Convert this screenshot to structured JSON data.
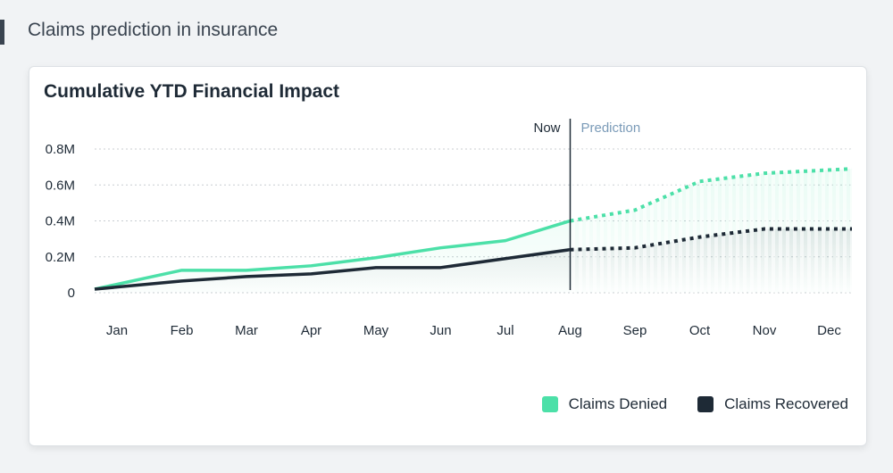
{
  "page_title": "Claims prediction in insurance",
  "chart_data": {
    "type": "line",
    "title": "Cumulative YTD Financial Impact",
    "categories": [
      "Jan",
      "Feb",
      "Mar",
      "Apr",
      "May",
      "Jun",
      "Jul",
      "Aug",
      "Sep",
      "Oct",
      "Nov",
      "Dec"
    ],
    "y_ticks": [
      "0",
      "0.2M",
      "0.4M",
      "0.6M",
      "0.8M"
    ],
    "ylim": [
      0,
      0.8
    ],
    "y_unit": "M",
    "grid": true,
    "now_label": "Now",
    "prediction_label": "Prediction",
    "now_index": 7,
    "legend_position": "bottom-right",
    "series": [
      {
        "name": "Claims Denied",
        "color": "#4ce0a8",
        "values": [
          0.02,
          0.125,
          0.125,
          0.15,
          0.195,
          0.25,
          0.29,
          0.4,
          0.46,
          0.62,
          0.665,
          0.69
        ]
      },
      {
        "name": "Claims Recovered",
        "color": "#1e2a36",
        "values": [
          0.02,
          0.065,
          0.09,
          0.105,
          0.14,
          0.14,
          0.19,
          0.24,
          0.25,
          0.31,
          0.355,
          0.355
        ]
      }
    ]
  }
}
